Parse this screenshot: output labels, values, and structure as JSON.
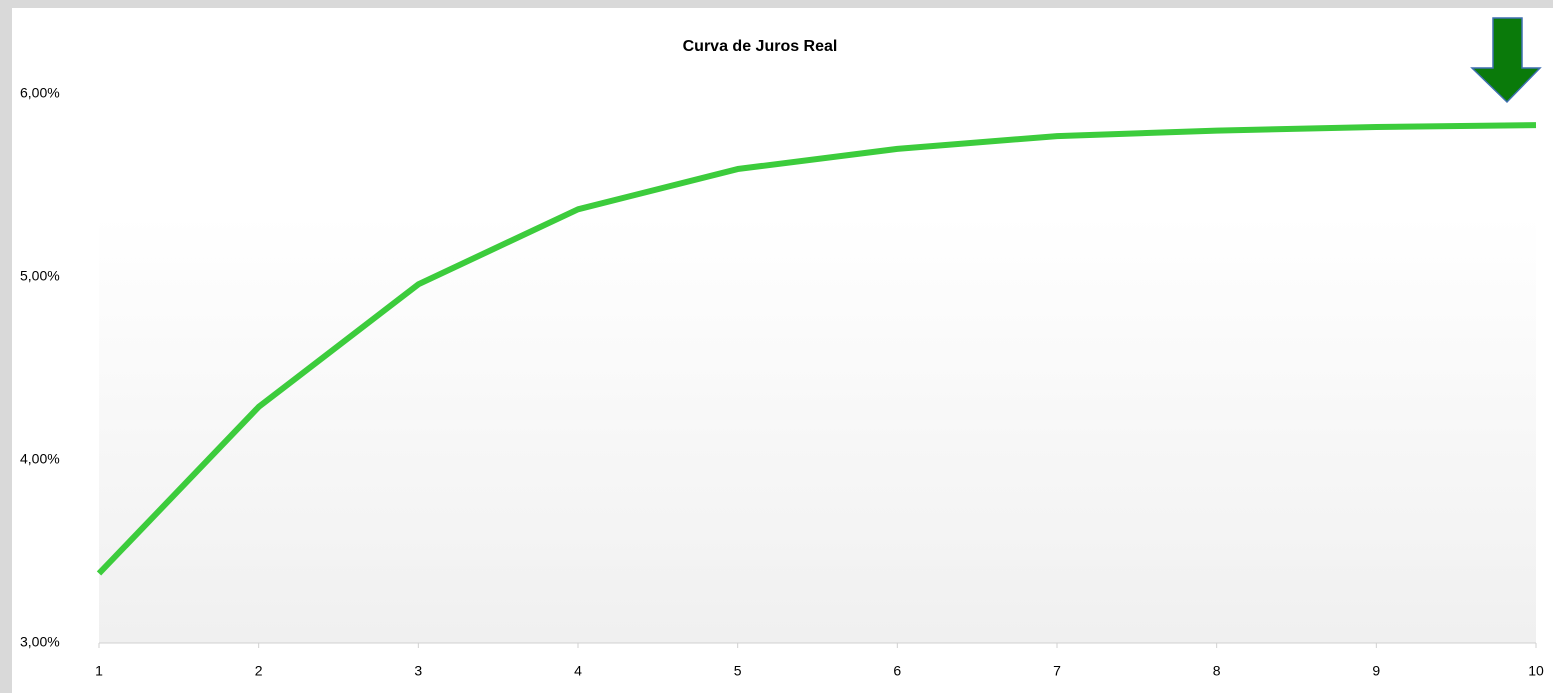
{
  "chart_data": {
    "type": "line",
    "title": "Curva de Juros Real",
    "x": [
      1,
      2,
      3,
      4,
      5,
      6,
      7,
      8,
      9,
      10
    ],
    "series": [
      {
        "color": "#3ccc3c",
        "values": [
          3.38,
          4.29,
          4.96,
          5.37,
          5.59,
          5.7,
          5.77,
          5.8,
          5.82,
          5.83
        ]
      }
    ],
    "xlim": [
      1,
      10
    ],
    "xticks": [
      1,
      2,
      3,
      4,
      5,
      6,
      7,
      8,
      9,
      10
    ],
    "ylim": [
      3,
      6
    ],
    "yticks": [
      {
        "value": 3,
        "label": "3,00%"
      },
      {
        "value": 4,
        "label": "4,00%"
      },
      {
        "value": 5,
        "label": "5,00%"
      },
      {
        "value": 6,
        "label": "6,00%"
      }
    ],
    "grid": false
  }
}
